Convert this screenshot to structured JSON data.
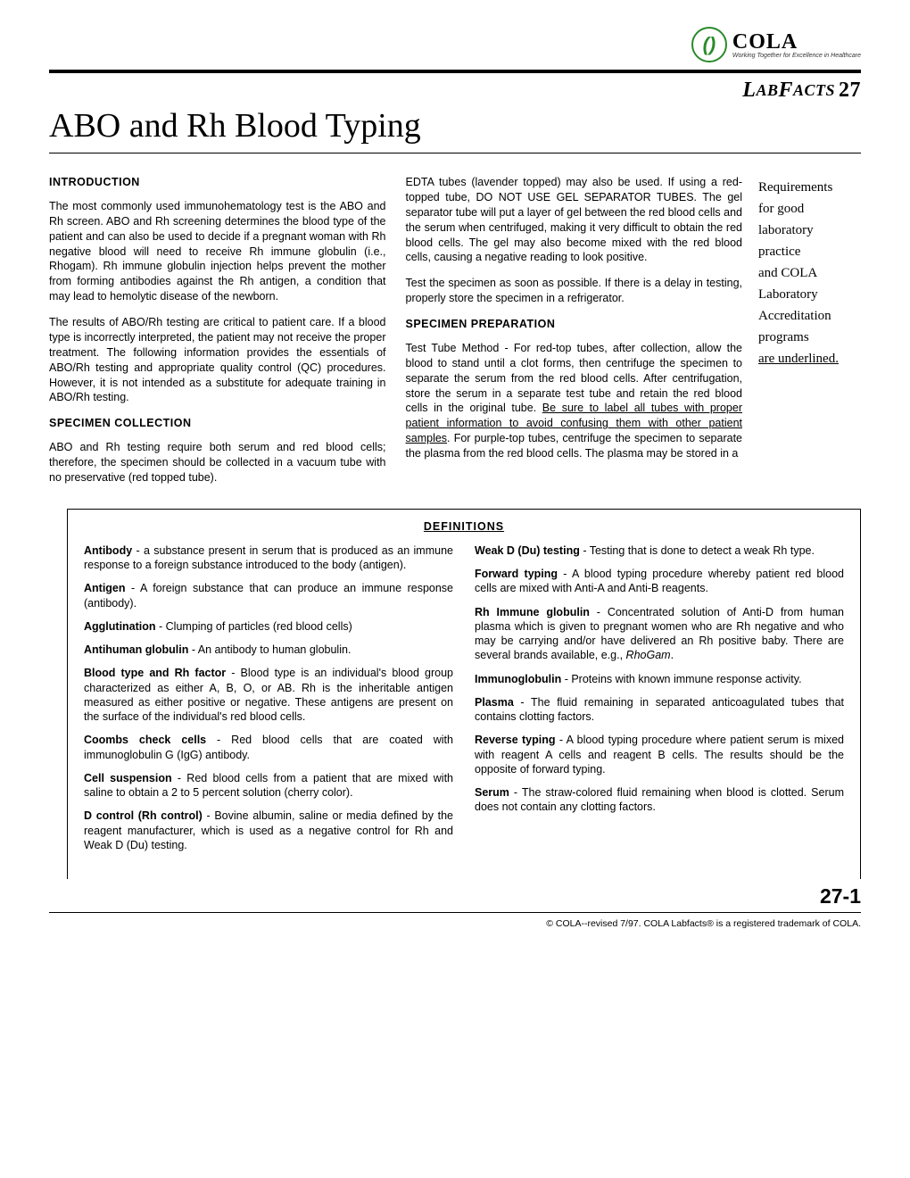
{
  "brand": {
    "name": "COLA",
    "tagline": "Working Together for Excellence in Healthcare",
    "logo_glyph": "()"
  },
  "series": {
    "label_leading": "L",
    "label_small1": "AB",
    "label_mid": "F",
    "label_small2": "ACTS",
    "number": "27"
  },
  "title": "ABO and Rh Blood Typing",
  "left_col": {
    "h1": "INTRODUCTION",
    "p1": "The most commonly used immunohematology test is the ABO and Rh screen. ABO and Rh screening determines the blood type of the patient and can also be used to decide if a pregnant woman with Rh negative blood will need to receive Rh immune globulin (i.e., Rhogam). Rh immune globulin injection helps prevent the mother from forming antibodies against the Rh antigen, a condition that may lead to hemolytic disease of the newborn.",
    "p2": "The results of ABO/Rh testing are critical to patient care. If a blood type is incorrectly interpreted, the patient may not receive the proper treatment. The following information provides the essentials of ABO/Rh testing and appropriate quality control (QC) procedures. However, it is not intended as a substitute for adequate training in ABO/Rh testing.",
    "h2": "SPECIMEN  COLLECTION",
    "p3": "ABO and Rh testing require both serum and red blood cells; therefore, the specimen should be collected in a vacuum tube with no preservative (red topped tube)."
  },
  "right_col": {
    "p1": "EDTA tubes (lavender topped) may also be used. If using a red-topped tube, DO NOT USE GEL SEPARATOR TUBES. The gel separator tube will put a layer of gel between the red blood cells and the serum when centrifuged, making it very difficult to obtain the red blood cells. The gel may also become mixed with the red blood cells, causing a negative reading to look positive.",
    "p2": "Test the specimen as soon as possible. If there is a delay in testing, properly store the specimen in a refrigerator.",
    "h1": "SPECIMEN  PREPARATION",
    "p3a": "Test Tube Method - For red-top tubes, after collection, allow the blood to stand until a clot forms, then centrifuge the specimen to separate the serum from the red blood cells. After centrifugation, store the serum in a separate test tube and retain the red blood cells in the original tube. ",
    "p3u": "Be sure to label all tubes with proper patient information to avoid confusing them with other patient samples",
    "p3b": ". For purple-top tubes, centrifuge the specimen to separate the plasma from the red blood cells. The plasma may be stored in a"
  },
  "sidebar": {
    "lines": [
      "Requirements",
      "for good",
      "laboratory",
      "practice",
      "and COLA",
      "Laboratory",
      "Accreditation",
      "programs",
      "are underlined."
    ]
  },
  "definitions": {
    "title": "DEFINITIONS",
    "left": [
      {
        "term": "Antibody",
        "body": " - a substance present in serum that is produced as an immune response to a foreign substance introduced to the body (antigen)."
      },
      {
        "term": "Antigen",
        "body": " - A foreign substance that can produce an immune response (antibody)."
      },
      {
        "term": "Agglutination",
        "body": " - Clumping of particles (red blood cells)"
      },
      {
        "term": "Antihuman globulin",
        "body": " - An antibody to human globulin."
      },
      {
        "term": "Blood type and Rh factor",
        "body": " - Blood type is an individual's blood group characterized as either A, B, O, or AB. Rh is the inheritable antigen measured as either positive or negative. These antigens are present on the surface of the individual's red blood cells."
      },
      {
        "term": "Coombs check cells",
        "body": " - Red blood cells that are coated with immunoglobulin G (IgG) antibody."
      },
      {
        "term": "Cell suspension",
        "body": " - Red blood cells from a patient that are mixed with saline to obtain a 2 to 5 percent solution (cherry color)."
      },
      {
        "term": "D control (Rh control)",
        "body": " - Bovine albumin, saline or media defined by the reagent manufacturer, which is used as a negative control for Rh and Weak D (Du) testing."
      }
    ],
    "right": [
      {
        "term": "Weak D (Du) testing",
        "body": " - Testing that is done to detect a weak Rh type."
      },
      {
        "term": "Forward typing",
        "body": " - A blood typing procedure whereby patient red blood cells are mixed with Anti-A and Anti-B reagents."
      },
      {
        "term": "Rh Immune globulin",
        "body": " - Concentrated solution of Anti-D from human plasma which is given to pregnant women who are Rh negative and who may be carrying and/or have delivered an Rh positive baby. There are several brands available, e.g., ",
        "tail_italic": "RhoGam",
        "tail": "."
      },
      {
        "term": "Immunoglobulin",
        "body": " - Proteins with known immune response activity."
      },
      {
        "term": "Plasma",
        "body": " - The fluid remaining in separated anticoagulated tubes that contains clotting factors."
      },
      {
        "term": "Reverse typing",
        "body": " - A blood typing procedure where patient serum is mixed with reagent A cells and reagent B cells. The results should be the opposite of forward typing."
      },
      {
        "term": "Serum",
        "body": " - The straw-colored fluid remaining when blood is clotted. Serum does not contain any clotting factors."
      }
    ]
  },
  "page_number": "27-1",
  "footer": "© COLA--revised 7/97. COLA Labfacts® is a registered trademark of COLA.",
  "colors": {
    "accent_green": "#2a8a2a",
    "text": "#000000",
    "background": "#ffffff"
  }
}
